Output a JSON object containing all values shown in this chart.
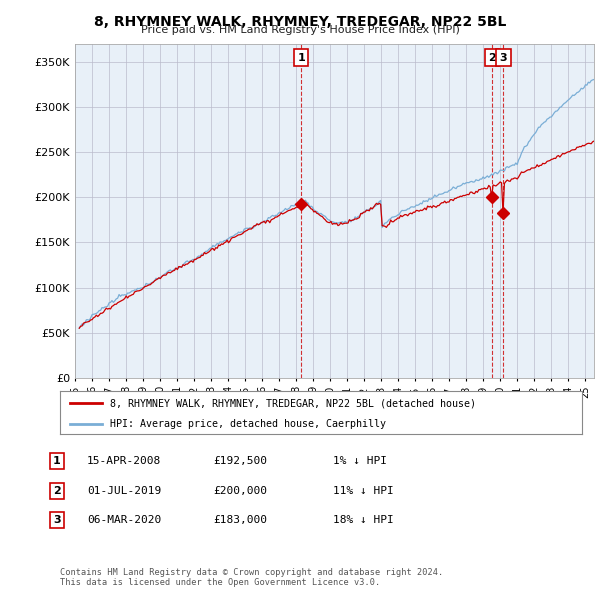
{
  "title": "8, RHYMNEY WALK, RHYMNEY, TREDEGAR, NP22 5BL",
  "subtitle": "Price paid vs. HM Land Registry's House Price Index (HPI)",
  "ytick_values": [
    0,
    50000,
    100000,
    150000,
    200000,
    250000,
    300000,
    350000
  ],
  "ylim": [
    0,
    370000
  ],
  "xlim_start": 1995.25,
  "xlim_end": 2025.5,
  "purchase_dates": [
    2008.29,
    2019.5,
    2020.18
  ],
  "purchase_prices": [
    192500,
    200000,
    183000
  ],
  "purchase_labels": [
    "1",
    "2",
    "3"
  ],
  "legend_line1": "8, RHYMNEY WALK, RHYMNEY, TREDEGAR, NP22 5BL (detached house)",
  "legend_line2": "HPI: Average price, detached house, Caerphilly",
  "table_entries": [
    {
      "label": "1",
      "date": "15-APR-2008",
      "price": "£192,500",
      "pct": "1%",
      "dir": "↓",
      "ref": "HPI"
    },
    {
      "label": "2",
      "date": "01-JUL-2019",
      "price": "£200,000",
      "pct": "11%",
      "dir": "↓",
      "ref": "HPI"
    },
    {
      "label": "3",
      "date": "06-MAR-2020",
      "price": "£183,000",
      "pct": "18%",
      "dir": "↓",
      "ref": "HPI"
    }
  ],
  "footer": "Contains HM Land Registry data © Crown copyright and database right 2024.\nThis data is licensed under the Open Government Licence v3.0.",
  "house_color": "#cc0000",
  "hpi_color": "#7aaed6",
  "plot_bg_color": "#e8f0f8",
  "bg_color": "#ffffff",
  "grid_color": "#bbbbcc"
}
